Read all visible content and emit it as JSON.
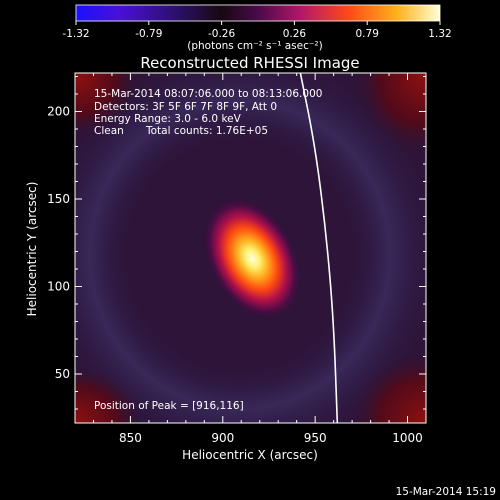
{
  "chart_data": {
    "type": "heatmap",
    "title": "Reconstructed RHESSI Image",
    "xlabel": "Heliocentric X (arcsec)",
    "ylabel": "Heliocentric Y (arcsec)",
    "xlim": [
      820,
      1010
    ],
    "ylim": [
      22,
      222
    ],
    "x_ticks": [
      850,
      900,
      950,
      1000
    ],
    "y_ticks": [
      50,
      100,
      150,
      200
    ],
    "colorbar": {
      "min": -1.32,
      "max": 1.32,
      "ticks": [
        "-1.32",
        "-0.79",
        "-0.26",
        "0.26",
        "0.79",
        "1.32"
      ],
      "unit_label": "(photons cm⁻² s⁻¹ asec⁻²)"
    },
    "peak": {
      "x": 916,
      "y": 116,
      "value": 1.32
    },
    "annotations": {
      "time_range": "15-Mar-2014 08:07:06.000 to 08:13:06.000",
      "detectors": "Detectors: 3F 5F 6F 7F 8F 9F, Att 0",
      "energy": "Energy Range: 3.0 - 6.0 keV",
      "clean": "Clean",
      "total_counts": "Total counts: 1.76E+05",
      "peak_position": "Position of Peak = [916,116]"
    },
    "limb_curve": [
      [
        942,
        222
      ],
      [
        950,
        180
      ],
      [
        956,
        130
      ],
      [
        960,
        80
      ],
      [
        962,
        22
      ]
    ]
  },
  "footer": {
    "timestamp": "15-Mar-2014 15:19"
  }
}
